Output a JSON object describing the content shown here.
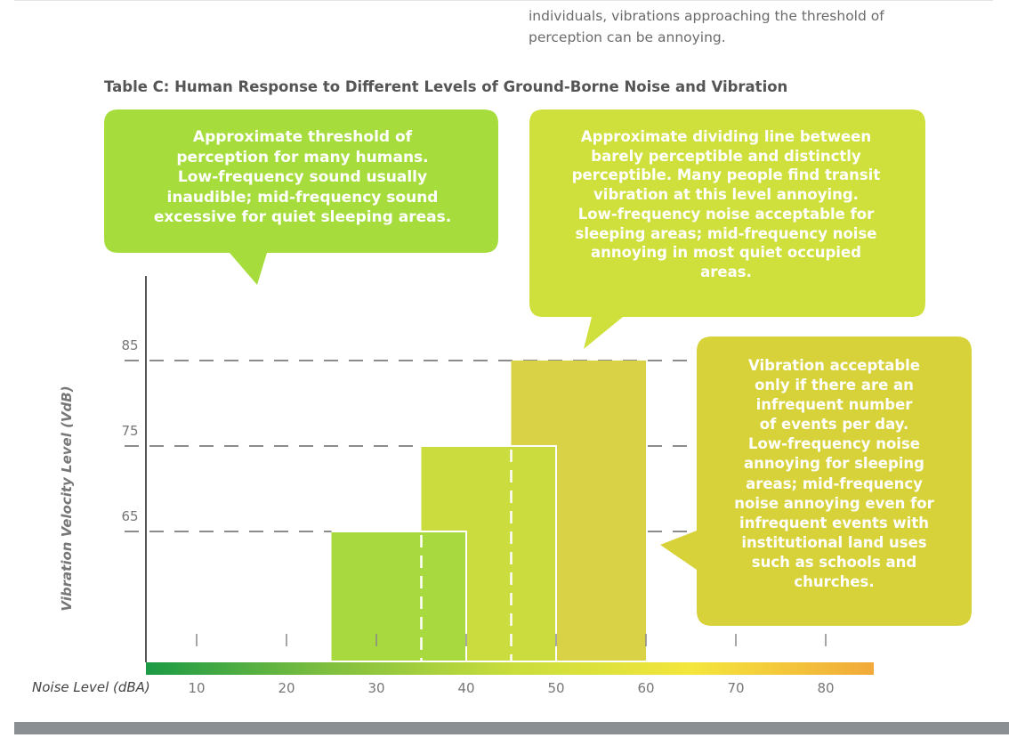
{
  "intro_lines": [
    "individuals, vibrations approaching the threshold of",
    "perception can be annoying."
  ],
  "table_title": "Table C: Human Response to Different Levels of Ground-Borne Noise  and Vibration",
  "callouts": [
    {
      "name": "callout-threshold",
      "lines": [
        "Approximate threshold of",
        "perception for many humans.",
        "Low-frequency sound usually",
        "inaudible; mid-frequency sound",
        "excessive for quiet sleeping  areas."
      ]
    },
    {
      "name": "callout-dividing-line",
      "lines": [
        "Approximate dividing line between",
        "barely  perceptible and distinctly",
        "perceptible. Many people find transit",
        "vibration at this level annoying.",
        "Low-frequency noise acceptable for",
        "sleeping areas; mid-frequency noise",
        "annoying in most quiet occupied",
        "areas."
      ]
    },
    {
      "name": "callout-infrequent-events",
      "lines": [
        "Vibration acceptable",
        "only if there are an",
        "infrequent number",
        "of events per day.",
        "Low-frequency noise",
        "annoying for sleeping",
        "areas; mid-frequency",
        "noise annoying even for",
        "infrequent events with",
        "institutional land uses",
        "such as schools and",
        "churches."
      ]
    }
  ],
  "colors": {
    "callout_1": "#a6dd3c",
    "callout_2": "#cfe03c",
    "callout_3": "#d8d23a",
    "bar_1": "#a8d93e",
    "bar_2": "#cadc3e",
    "bar_3": "#d9d246",
    "gradient": [
      "#1b9a45",
      "#7fbf3f",
      "#c8dd3c",
      "#f4e63c",
      "#f2a93a"
    ],
    "axis": "#555555",
    "dash": "#8c8c8c",
    "tick_text": "#777777"
  },
  "chart_data": {
    "type": "bar",
    "title": "Table C: Human Response to Different Levels of Ground-Borne Noise  and Vibration",
    "xlabel": "Noise Level (dBA)",
    "ylabel": "Vibration Velocity Level (VdB)",
    "xticks": [
      10,
      20,
      30,
      40,
      50,
      60,
      70,
      80
    ],
    "yticks": [
      65,
      75,
      85
    ],
    "bars": [
      {
        "x_start": 25,
        "x_end": 40,
        "x_mid": 35,
        "vdb": 65
      },
      {
        "x_start": 35,
        "x_end": 50,
        "x_mid": 45,
        "vdb": 75
      },
      {
        "x_start": 45,
        "x_end": 60,
        "x_mid": 55,
        "vdb": 85
      }
    ],
    "reference_lines_vdb": [
      65,
      75,
      85
    ],
    "grid": false
  }
}
